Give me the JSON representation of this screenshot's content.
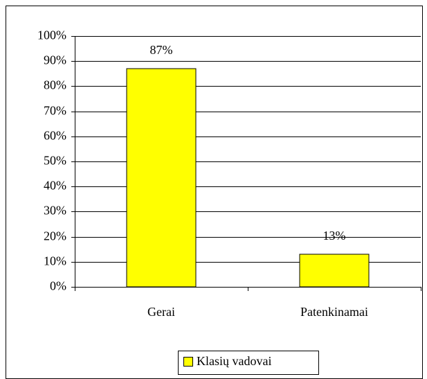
{
  "chart_data": {
    "type": "bar",
    "categories": [
      "Gerai",
      "Patenkinamai"
    ],
    "series": [
      {
        "name": "Klasių vadovai",
        "color": "#ffff00",
        "values": [
          87,
          13
        ],
        "value_labels": [
          "87%",
          "13%"
        ]
      }
    ],
    "ylim": [
      0,
      100
    ],
    "yticks": [
      {
        "value": 0,
        "label": "0%"
      },
      {
        "value": 10,
        "label": "10%"
      },
      {
        "value": 20,
        "label": "20%"
      },
      {
        "value": 30,
        "label": "30%"
      },
      {
        "value": 40,
        "label": "40%"
      },
      {
        "value": 50,
        "label": "50%"
      },
      {
        "value": 60,
        "label": "60%"
      },
      {
        "value": 70,
        "label": "70%"
      },
      {
        "value": 80,
        "label": "80%"
      },
      {
        "value": 90,
        "label": "90%"
      },
      {
        "value": 100,
        "label": "100%"
      }
    ],
    "grid": true,
    "legend": "bottom"
  }
}
